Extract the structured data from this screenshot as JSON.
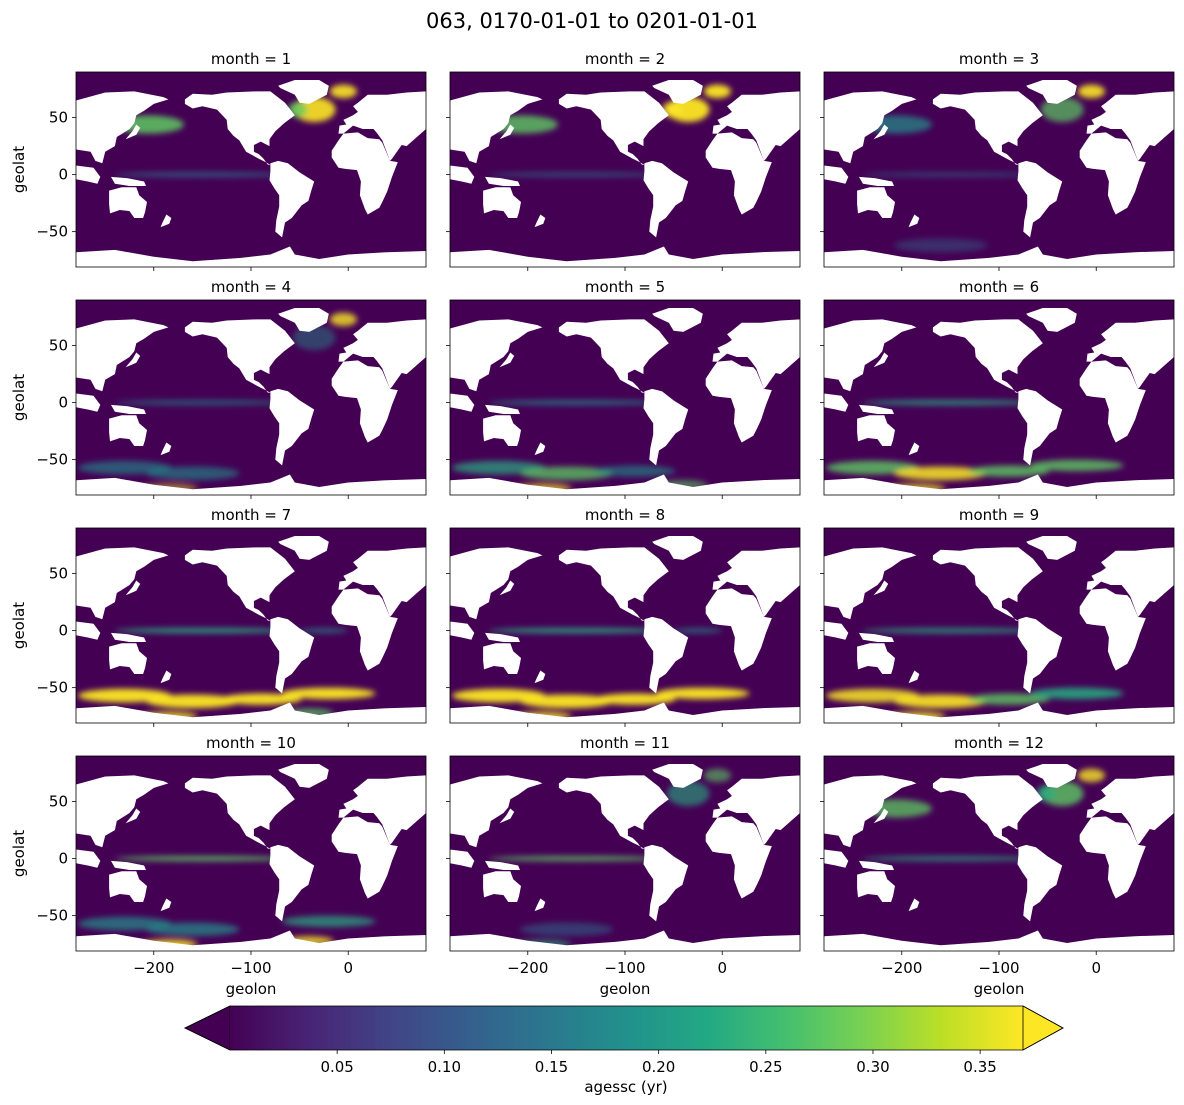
{
  "figure": {
    "title": "063, 0170-01-01 to 0201-01-01"
  },
  "chart_data": {
    "type": "heatmap",
    "panel_titles": [
      "month = 1",
      "month = 2",
      "month = 3",
      "month = 4",
      "month = 5",
      "month = 6",
      "month = 7",
      "month = 8",
      "month = 9",
      "month = 10",
      "month = 11",
      "month = 12"
    ],
    "months": [
      1,
      2,
      3,
      4,
      5,
      6,
      7,
      8,
      9,
      10,
      11,
      12
    ],
    "xlabel": "geolon",
    "ylabel": "geolat",
    "xlim": [
      -280,
      80
    ],
    "ylim": [
      -81,
      90
    ],
    "xticks": [
      -200,
      -100,
      0
    ],
    "xtick_labels": [
      "−200",
      "−100",
      "0"
    ],
    "yticks": [
      50,
      0,
      -50
    ],
    "ytick_labels": [
      "50",
      "0",
      "−50"
    ],
    "colorbar": {
      "label": "agessc (yr)",
      "range": [
        0,
        0.37
      ],
      "extend": "both",
      "colormap": "viridis",
      "ticks": [
        0.05,
        0.1,
        0.15,
        0.2,
        0.25,
        0.3,
        0.35
      ],
      "tick_labels": [
        "0.05",
        "0.10",
        "0.15",
        "0.20",
        "0.25",
        "0.30",
        "0.35"
      ]
    },
    "land_color": "#ffffff",
    "ocean_background_color": "#440154",
    "layout": {
      "rows": 4,
      "cols": 3
    }
  }
}
